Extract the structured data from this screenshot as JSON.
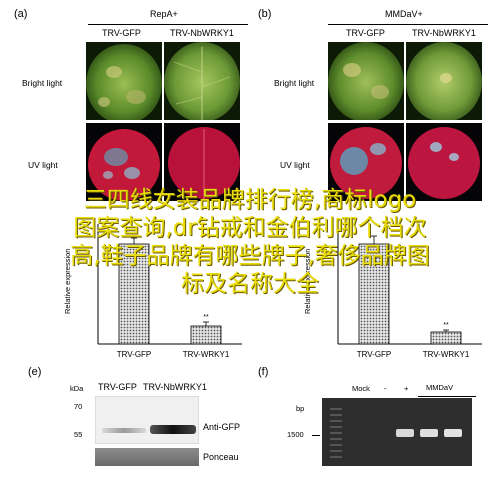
{
  "panels": {
    "a": {
      "label": "(a)",
      "title": "RepA+",
      "col1": "TRV-GFP",
      "col2": "TRV-NbWRKY1"
    },
    "b": {
      "label": "(b)",
      "title": "MMDaV+",
      "col1": "TRV-GFP",
      "col2": "TRV-NbWRKY1"
    },
    "row_bright": "Bright light",
    "row_uv": "UV light",
    "e": {
      "label": "(e)",
      "marker_header": "kDa",
      "lane1": "TRV-GFP",
      "lane2": "TRV-NbWRKY1",
      "marker70": "70",
      "marker55": "55",
      "band_label": "Anti-GFP",
      "loading_label": "Ponceau"
    },
    "f": {
      "label": "(f)",
      "bp_header": "bp",
      "marker1500": "1500",
      "mock": "Mock",
      "minus": "-",
      "plus": "+",
      "mmdav": "MMDaV"
    }
  },
  "overlay": {
    "line1": "三四线女装品牌排行榜,商标logo",
    "line2": "图案查询,dr钻戒和金伯利哪个档次",
    "line3": "高,鞋子品牌有哪些牌子,奢侈品牌图",
    "line4": "标及名称大全"
  },
  "chart_data": [
    {
      "type": "bar",
      "ylabel": "Relative expression",
      "categories": [
        "TRV-GFP",
        "TRV-WRKY1"
      ],
      "values": [
        1.0,
        0.18
      ],
      "errors": [
        0.06,
        0.04
      ],
      "annotations": [
        "",
        "**"
      ],
      "ylim": [
        0,
        1.2
      ]
    },
    {
      "type": "bar",
      "ylabel": "Relative expression",
      "categories": [
        "TRV-GFP",
        "TRV-WRKY1"
      ],
      "values": [
        1.0,
        0.12
      ],
      "errors": [
        0.08,
        0.02
      ],
      "annotations": [
        "",
        "**"
      ],
      "ylim": [
        0,
        1.2
      ]
    }
  ]
}
